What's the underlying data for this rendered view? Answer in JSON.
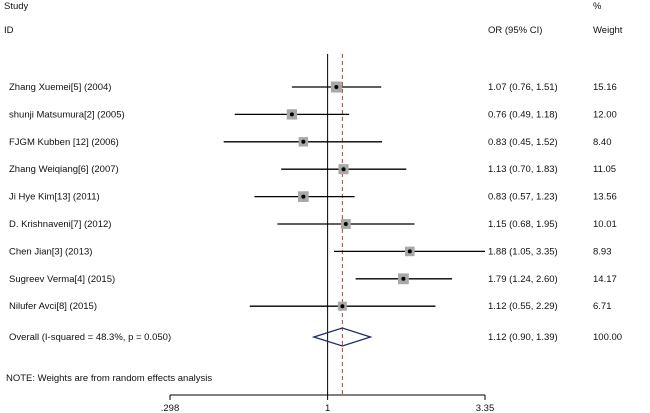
{
  "chart_data": {
    "type": "forest",
    "scale": "log",
    "xlim": [
      0.298,
      3.35
    ],
    "null_line": 1,
    "pooled_line": 1.12,
    "headers": {
      "study_top": "Study",
      "study": "ID",
      "effect": "OR (95% CI)",
      "weight_top": "%",
      "weight": "Weight"
    },
    "studies": [
      {
        "id": "Zhang Xuemei[5] (2004)",
        "or": 1.07,
        "lo": 0.76,
        "hi": 1.51,
        "ci_text": "1.07 (0.76, 1.51)",
        "weight": "15.16"
      },
      {
        "id": "shunji Matsumura[2] (2005)",
        "or": 0.76,
        "lo": 0.49,
        "hi": 1.18,
        "ci_text": "0.76 (0.49, 1.18)",
        "weight": "12.00"
      },
      {
        "id": "FJGM Kubben [12] (2006)",
        "or": 0.83,
        "lo": 0.45,
        "hi": 1.52,
        "ci_text": "0.83 (0.45, 1.52)",
        "weight": "8.40"
      },
      {
        "id": "Zhang Weiqiang[6] (2007)",
        "or": 1.13,
        "lo": 0.7,
        "hi": 1.83,
        "ci_text": "1.13 (0.70, 1.83)",
        "weight": "11.05"
      },
      {
        "id": "Ji Hye Kim[13] (2011)",
        "or": 0.83,
        "lo": 0.57,
        "hi": 1.23,
        "ci_text": "0.83 (0.57, 1.23)",
        "weight": "13.56"
      },
      {
        "id": "D. Krishnaveni[7] (2012)",
        "or": 1.15,
        "lo": 0.68,
        "hi": 1.95,
        "ci_text": "1.15 (0.68, 1.95)",
        "weight": "10.01"
      },
      {
        "id": "Chen Jian[3] (2013)",
        "or": 1.88,
        "lo": 1.05,
        "hi": 3.35,
        "ci_text": "1.88 (1.05, 3.35)",
        "weight": "8.93"
      },
      {
        "id": "Sugreev Verma[4] (2015)",
        "or": 1.79,
        "lo": 1.24,
        "hi": 2.6,
        "ci_text": "1.79 (1.24, 2.60)",
        "weight": "14.17"
      },
      {
        "id": "Nilufer Avci[8] (2015)",
        "or": 1.12,
        "lo": 0.55,
        "hi": 2.29,
        "ci_text": "1.12 (0.55, 2.29)",
        "weight": "6.71"
      }
    ],
    "overall": {
      "id": "Overall  (I-squared = 48.3%, p = 0.050)",
      "or": 1.12,
      "lo": 0.9,
      "hi": 1.39,
      "ci_text": "1.12 (0.90, 1.39)",
      "weight": "100.00"
    },
    "note": "NOTE: Weights are from random effects analysis",
    "x_ticks": [
      {
        "value": 0.298,
        "label": ".298"
      },
      {
        "value": 1,
        "label": "1"
      },
      {
        "value": 3.35,
        "label": "3.35"
      }
    ],
    "colors": {
      "ci_line": "#000000",
      "marker": "#000000",
      "box": "#a8a8a8",
      "pooled_line": "#c0392b",
      "diamond": "#1f2a6b"
    }
  }
}
